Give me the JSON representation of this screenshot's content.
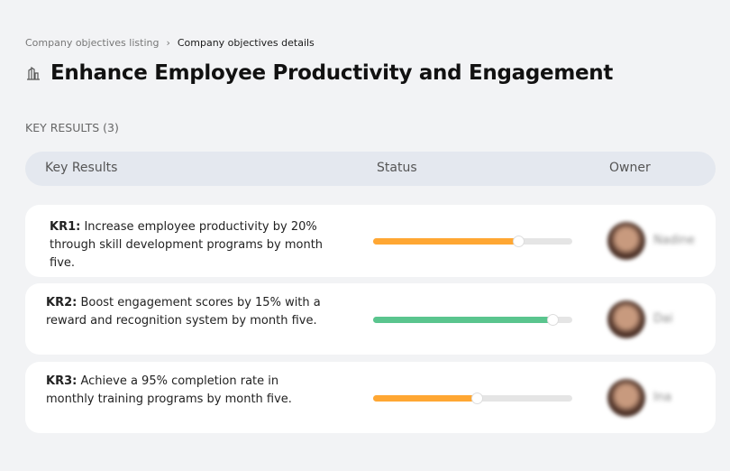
{
  "breadcrumb": {
    "parent": "Company objectives listing",
    "separator": "›",
    "current": "Company objectives details"
  },
  "page": {
    "title": "Enhance Employee Productivity and Engagement",
    "icon": "buildings-icon"
  },
  "section": {
    "label": "KEY RESULTS (3)"
  },
  "table": {
    "headers": [
      "Key Results",
      "Status",
      "Owner"
    ]
  },
  "key_results": [
    {
      "id": "KR1:",
      "text": " Increase employee productivity by 20% through skill development programs by month five.",
      "progress": 73,
      "color": "#ffa733",
      "owner": "Nadine"
    },
    {
      "id": "KR2:",
      "text": " Boost engagement scores by 15% with a reward and recognition system by month five.",
      "progress": 90,
      "color": "#5ac58e",
      "owner": "Dai"
    },
    {
      "id": "KR3:",
      "text": " Achieve a 95% completion rate in monthly training programs by month five.",
      "progress": 52,
      "color": "#ffa733",
      "owner": "Ina"
    }
  ]
}
